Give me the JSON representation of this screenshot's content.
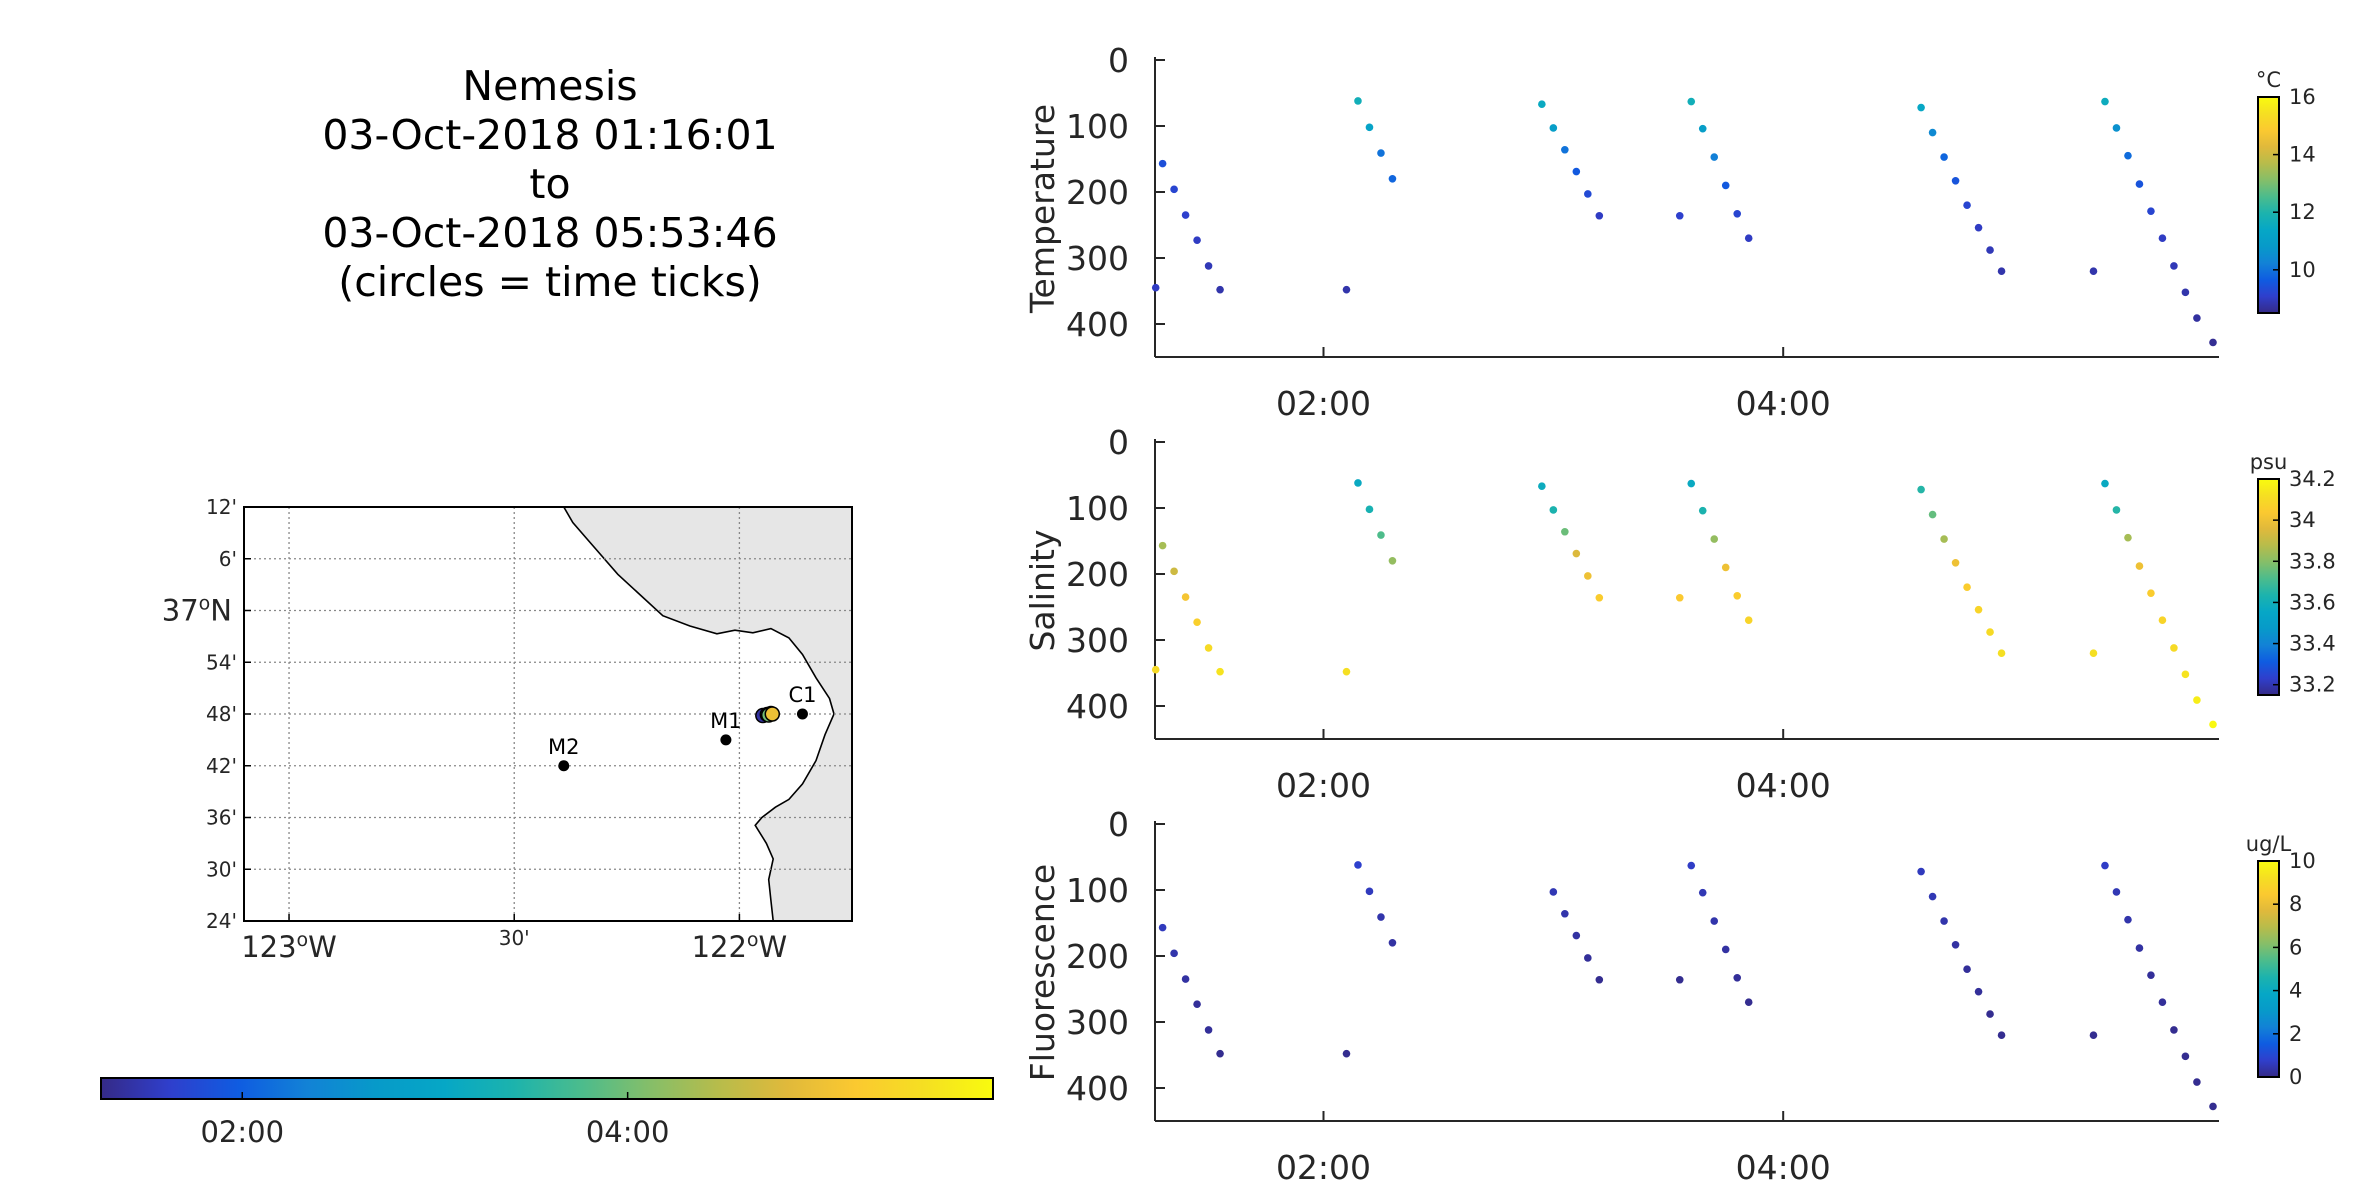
{
  "title_lines": [
    "Nemesis",
    "03-Oct-2018 01:16:01",
    "to",
    "03-Oct-2018 05:53:46",
    "(circles = time ticks)"
  ],
  "colors": {
    "land": "#e6e6e6",
    "axis": "#262626",
    "grid": "#888888",
    "parula": [
      "#352a87",
      "#2f3fcc",
      "#0f5ce1",
      "#1282d6",
      "#079ac9",
      "#06a7c6",
      "#1cb3ad",
      "#4bbc8d",
      "#85be69",
      "#b7bc4b",
      "#e0b93b",
      "#fbc930",
      "#f5df22",
      "#f9fb0e"
    ]
  },
  "time_colorbar": {
    "ticks": [
      {
        "t": 2.0,
        "label": "02:00"
      },
      {
        "t": 4.0,
        "label": "04:00"
      }
    ],
    "range": [
      1.2669,
      5.8961
    ]
  },
  "map": {
    "lon_ticks": [
      {
        "lon": -123.0,
        "label": "123",
        "suffix": "W",
        "major": true
      },
      {
        "lon": -122.5,
        "label": "30'",
        "major": false
      },
      {
        "lon": -122.0,
        "label": "122",
        "suffix": "W",
        "major": true
      }
    ],
    "lat_ticks": [
      {
        "lat": 37.2,
        "label": "12'"
      },
      {
        "lat": 37.1,
        "label": "6'"
      },
      {
        "lat": 37.0,
        "label": "37",
        "suffix": "N",
        "major": true
      },
      {
        "lat": 36.9,
        "label": "54'"
      },
      {
        "lat": 36.8,
        "label": "48'"
      },
      {
        "lat": 36.7,
        "label": "42'"
      },
      {
        "lat": 36.6,
        "label": "36'"
      },
      {
        "lat": 36.5,
        "label": "30'"
      },
      {
        "lat": 36.4,
        "label": "24'"
      }
    ],
    "lon_range": [
      -123.1,
      -121.75
    ],
    "lat_range": [
      36.4,
      37.2
    ],
    "degree_symbol": "o",
    "stations": [
      {
        "name": "M2",
        "lon": -122.39,
        "lat": 36.7
      },
      {
        "name": "M1",
        "lon": -122.03,
        "lat": 36.75
      },
      {
        "name": "C1",
        "lon": -121.86,
        "lat": 36.8
      }
    ],
    "track": [
      {
        "lon": -121.948,
        "lat": 36.797,
        "t": 1.4
      },
      {
        "lon": -121.938,
        "lat": 36.799,
        "t": 2.1
      },
      {
        "lon": -121.93,
        "lat": 36.801,
        "t": 3.0
      },
      {
        "lon": -121.935,
        "lat": 36.798,
        "t": 4.0
      },
      {
        "lon": -121.927,
        "lat": 36.8,
        "t": 5.0
      }
    ]
  },
  "chart_data": [
    {
      "type": "scatter",
      "ylabel": "Temperature",
      "ylim": [
        0,
        450
      ],
      "yticks": [
        0,
        100,
        200,
        300,
        400
      ],
      "xlim": [
        1.2669,
        5.8961
      ],
      "xticks": [
        {
          "t": 2.0,
          "label": "02:00"
        },
        {
          "t": 4.0,
          "label": "04:00"
        }
      ],
      "colorbar": {
        "unit": "°C",
        "range": [
          8.5,
          16
        ],
        "ticks": [
          10,
          12,
          14,
          16
        ]
      },
      "points": [
        {
          "t": 1.27,
          "depth": 345,
          "v": 9.0
        },
        {
          "t": 1.3,
          "depth": 157,
          "v": 9.4
        },
        {
          "t": 1.35,
          "depth": 196,
          "v": 9.2
        },
        {
          "t": 1.4,
          "depth": 235,
          "v": 9.1
        },
        {
          "t": 1.45,
          "depth": 273,
          "v": 9.0
        },
        {
          "t": 1.5,
          "depth": 312,
          "v": 8.9
        },
        {
          "t": 1.55,
          "depth": 348,
          "v": 8.8
        },
        {
          "t": 2.1,
          "depth": 348,
          "v": 8.8
        },
        {
          "t": 2.15,
          "depth": 62,
          "v": 11.7
        },
        {
          "t": 2.2,
          "depth": 102,
          "v": 11.2
        },
        {
          "t": 2.25,
          "depth": 141,
          "v": 10.0
        },
        {
          "t": 2.3,
          "depth": 180,
          "v": 9.8
        },
        {
          "t": 2.95,
          "depth": 67,
          "v": 11.5
        },
        {
          "t": 3.0,
          "depth": 103,
          "v": 11.0
        },
        {
          "t": 3.05,
          "depth": 136,
          "v": 10.0
        },
        {
          "t": 3.1,
          "depth": 169,
          "v": 9.6
        },
        {
          "t": 3.15,
          "depth": 203,
          "v": 9.3
        },
        {
          "t": 3.2,
          "depth": 236,
          "v": 9.0
        },
        {
          "t": 3.55,
          "depth": 236,
          "v": 9.1
        },
        {
          "t": 3.6,
          "depth": 63,
          "v": 11.7
        },
        {
          "t": 3.65,
          "depth": 104,
          "v": 11.0
        },
        {
          "t": 3.7,
          "depth": 147,
          "v": 10.2
        },
        {
          "t": 3.75,
          "depth": 190,
          "v": 9.6
        },
        {
          "t": 3.8,
          "depth": 233,
          "v": 9.2
        },
        {
          "t": 3.85,
          "depth": 270,
          "v": 9.0
        },
        {
          "t": 4.6,
          "depth": 72,
          "v": 11.4
        },
        {
          "t": 4.65,
          "depth": 110,
          "v": 10.4
        },
        {
          "t": 4.7,
          "depth": 147,
          "v": 9.8
        },
        {
          "t": 4.75,
          "depth": 183,
          "v": 9.5
        },
        {
          "t": 4.8,
          "depth": 220,
          "v": 9.2
        },
        {
          "t": 4.85,
          "depth": 254,
          "v": 9.0
        },
        {
          "t": 4.9,
          "depth": 288,
          "v": 8.9
        },
        {
          "t": 4.95,
          "depth": 320,
          "v": 8.8
        },
        {
          "t": 5.35,
          "depth": 320,
          "v": 8.8
        },
        {
          "t": 5.4,
          "depth": 63,
          "v": 11.6
        },
        {
          "t": 5.45,
          "depth": 103,
          "v": 10.6
        },
        {
          "t": 5.5,
          "depth": 145,
          "v": 9.9
        },
        {
          "t": 5.55,
          "depth": 188,
          "v": 9.5
        },
        {
          "t": 5.6,
          "depth": 229,
          "v": 9.2
        },
        {
          "t": 5.65,
          "depth": 270,
          "v": 9.0
        },
        {
          "t": 5.7,
          "depth": 312,
          "v": 8.9
        },
        {
          "t": 5.75,
          "depth": 352,
          "v": 8.8
        },
        {
          "t": 5.8,
          "depth": 391,
          "v": 8.7
        },
        {
          "t": 5.87,
          "depth": 428,
          "v": 8.6
        }
      ]
    },
    {
      "type": "scatter",
      "ylabel": "Salinity",
      "ylim": [
        0,
        450
      ],
      "yticks": [
        0,
        100,
        200,
        300,
        400
      ],
      "xlim": [
        1.2669,
        5.8961
      ],
      "xticks": [
        {
          "t": 2.0,
          "label": "02:00"
        },
        {
          "t": 4.0,
          "label": "04:00"
        }
      ],
      "colorbar": {
        "unit": "psu",
        "range": [
          33.15,
          34.2
        ],
        "ticks": [
          33.2,
          33.4,
          33.6,
          33.8,
          34,
          34.2
        ]
      },
      "points": [
        {
          "t": 1.27,
          "depth": 345,
          "v": 34.1
        },
        {
          "t": 1.3,
          "depth": 157,
          "v": 33.85
        },
        {
          "t": 1.35,
          "depth": 196,
          "v": 33.92
        },
        {
          "t": 1.4,
          "depth": 235,
          "v": 34.02
        },
        {
          "t": 1.45,
          "depth": 273,
          "v": 34.06
        },
        {
          "t": 1.5,
          "depth": 312,
          "v": 34.1
        },
        {
          "t": 1.55,
          "depth": 348,
          "v": 34.13
        },
        {
          "t": 2.1,
          "depth": 348,
          "v": 34.12
        },
        {
          "t": 2.15,
          "depth": 62,
          "v": 33.57
        },
        {
          "t": 2.2,
          "depth": 102,
          "v": 33.62
        },
        {
          "t": 2.25,
          "depth": 141,
          "v": 33.72
        },
        {
          "t": 2.3,
          "depth": 180,
          "v": 33.82
        },
        {
          "t": 2.95,
          "depth": 67,
          "v": 33.58
        },
        {
          "t": 3.0,
          "depth": 103,
          "v": 33.63
        },
        {
          "t": 3.05,
          "depth": 136,
          "v": 33.76
        },
        {
          "t": 3.1,
          "depth": 169,
          "v": 33.95
        },
        {
          "t": 3.15,
          "depth": 203,
          "v": 34.0
        },
        {
          "t": 3.2,
          "depth": 236,
          "v": 34.05
        },
        {
          "t": 3.55,
          "depth": 236,
          "v": 34.04
        },
        {
          "t": 3.6,
          "depth": 63,
          "v": 33.57
        },
        {
          "t": 3.65,
          "depth": 104,
          "v": 33.63
        },
        {
          "t": 3.7,
          "depth": 147,
          "v": 33.82
        },
        {
          "t": 3.75,
          "depth": 190,
          "v": 34.0
        },
        {
          "t": 3.8,
          "depth": 233,
          "v": 34.05
        },
        {
          "t": 3.85,
          "depth": 270,
          "v": 34.08
        },
        {
          "t": 4.6,
          "depth": 72,
          "v": 33.65
        },
        {
          "t": 4.65,
          "depth": 110,
          "v": 33.75
        },
        {
          "t": 4.7,
          "depth": 147,
          "v": 33.85
        },
        {
          "t": 4.75,
          "depth": 183,
          "v": 34.0
        },
        {
          "t": 4.8,
          "depth": 220,
          "v": 34.05
        },
        {
          "t": 4.85,
          "depth": 254,
          "v": 34.08
        },
        {
          "t": 4.9,
          "depth": 288,
          "v": 34.1
        },
        {
          "t": 4.95,
          "depth": 320,
          "v": 34.12
        },
        {
          "t": 5.35,
          "depth": 320,
          "v": 34.12
        },
        {
          "t": 5.4,
          "depth": 63,
          "v": 33.57
        },
        {
          "t": 5.45,
          "depth": 103,
          "v": 33.65
        },
        {
          "t": 5.5,
          "depth": 145,
          "v": 33.85
        },
        {
          "t": 5.55,
          "depth": 188,
          "v": 34.0
        },
        {
          "t": 5.6,
          "depth": 229,
          "v": 34.05
        },
        {
          "t": 5.65,
          "depth": 270,
          "v": 34.08
        },
        {
          "t": 5.7,
          "depth": 312,
          "v": 34.1
        },
        {
          "t": 5.75,
          "depth": 352,
          "v": 34.13
        },
        {
          "t": 5.8,
          "depth": 391,
          "v": 34.16
        },
        {
          "t": 5.87,
          "depth": 428,
          "v": 34.19
        }
      ]
    },
    {
      "type": "scatter",
      "ylabel": "Fluorescence",
      "ylim": [
        0,
        450
      ],
      "yticks": [
        0,
        100,
        200,
        300,
        400
      ],
      "xlim": [
        1.2669,
        5.8961
      ],
      "xticks": [
        {
          "t": 2.0,
          "label": "02:00"
        },
        {
          "t": 4.0,
          "label": "04:00"
        }
      ],
      "colorbar": {
        "unit": "ug/L",
        "range": [
          0,
          10
        ],
        "ticks": [
          0,
          2,
          4,
          6,
          8,
          10
        ]
      },
      "points": [
        {
          "t": 1.3,
          "depth": 157,
          "v": 0.6
        },
        {
          "t": 1.35,
          "depth": 196,
          "v": 0.4
        },
        {
          "t": 1.4,
          "depth": 235,
          "v": 0.3
        },
        {
          "t": 1.45,
          "depth": 273,
          "v": 0.2
        },
        {
          "t": 1.5,
          "depth": 312,
          "v": 0.2
        },
        {
          "t": 1.55,
          "depth": 348,
          "v": 0.1
        },
        {
          "t": 2.1,
          "depth": 348,
          "v": 0.1
        },
        {
          "t": 2.15,
          "depth": 62,
          "v": 0.8
        },
        {
          "t": 2.2,
          "depth": 102,
          "v": 0.6
        },
        {
          "t": 2.25,
          "depth": 141,
          "v": 0.4
        },
        {
          "t": 2.3,
          "depth": 180,
          "v": 0.3
        },
        {
          "t": 3.0,
          "depth": 103,
          "v": 0.5
        },
        {
          "t": 3.05,
          "depth": 136,
          "v": 0.4
        },
        {
          "t": 3.1,
          "depth": 169,
          "v": 0.3
        },
        {
          "t": 3.15,
          "depth": 203,
          "v": 0.2
        },
        {
          "t": 3.2,
          "depth": 236,
          "v": 0.1
        },
        {
          "t": 3.55,
          "depth": 236,
          "v": 0.1
        },
        {
          "t": 3.6,
          "depth": 63,
          "v": 0.7
        },
        {
          "t": 3.65,
          "depth": 104,
          "v": 0.5
        },
        {
          "t": 3.7,
          "depth": 147,
          "v": 0.4
        },
        {
          "t": 3.75,
          "depth": 190,
          "v": 0.3
        },
        {
          "t": 3.8,
          "depth": 233,
          "v": 0.2
        },
        {
          "t": 3.85,
          "depth": 270,
          "v": 0.1
        },
        {
          "t": 4.6,
          "depth": 72,
          "v": 0.6
        },
        {
          "t": 4.65,
          "depth": 110,
          "v": 0.5
        },
        {
          "t": 4.7,
          "depth": 147,
          "v": 0.4
        },
        {
          "t": 4.75,
          "depth": 183,
          "v": 0.3
        },
        {
          "t": 4.8,
          "depth": 220,
          "v": 0.2
        },
        {
          "t": 4.85,
          "depth": 254,
          "v": 0.2
        },
        {
          "t": 4.9,
          "depth": 288,
          "v": 0.1
        },
        {
          "t": 4.95,
          "depth": 320,
          "v": 0.1
        },
        {
          "t": 5.35,
          "depth": 320,
          "v": 0.1
        },
        {
          "t": 5.4,
          "depth": 63,
          "v": 0.7
        },
        {
          "t": 5.45,
          "depth": 103,
          "v": 0.5
        },
        {
          "t": 5.5,
          "depth": 145,
          "v": 0.4
        },
        {
          "t": 5.55,
          "depth": 188,
          "v": 0.3
        },
        {
          "t": 5.6,
          "depth": 229,
          "v": 0.2
        },
        {
          "t": 5.65,
          "depth": 270,
          "v": 0.2
        },
        {
          "t": 5.7,
          "depth": 312,
          "v": 0.1
        },
        {
          "t": 5.75,
          "depth": 352,
          "v": 0.1
        },
        {
          "t": 5.8,
          "depth": 391,
          "v": 0.1
        },
        {
          "t": 5.87,
          "depth": 428,
          "v": 0.1
        }
      ]
    }
  ]
}
